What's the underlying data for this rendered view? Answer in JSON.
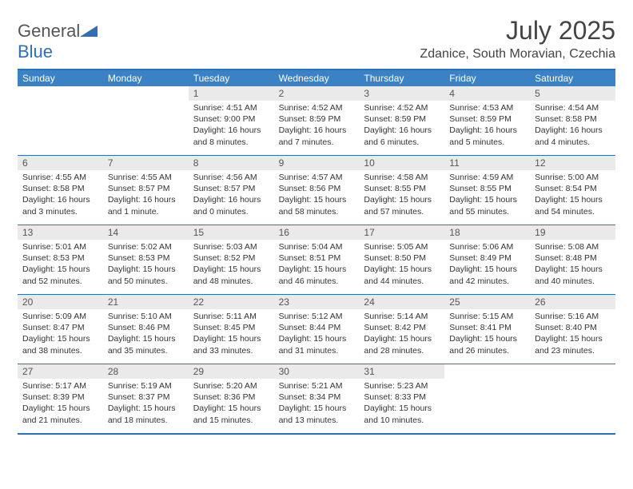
{
  "brand": {
    "name_prefix": "General",
    "name_suffix": "Blue"
  },
  "title": "July 2025",
  "location": "Zdanice, South Moravian, Czechia",
  "colors": {
    "header_bg": "#3b82c4",
    "border": "#2d6fb8",
    "daynum_bg": "#eaeaea",
    "text": "#333333"
  },
  "day_names": [
    "Sunday",
    "Monday",
    "Tuesday",
    "Wednesday",
    "Thursday",
    "Friday",
    "Saturday"
  ],
  "weeks": [
    [
      null,
      null,
      {
        "n": "1",
        "sr": "4:51 AM",
        "ss": "9:00 PM",
        "dl": "16 hours and 8 minutes."
      },
      {
        "n": "2",
        "sr": "4:52 AM",
        "ss": "8:59 PM",
        "dl": "16 hours and 7 minutes."
      },
      {
        "n": "3",
        "sr": "4:52 AM",
        "ss": "8:59 PM",
        "dl": "16 hours and 6 minutes."
      },
      {
        "n": "4",
        "sr": "4:53 AM",
        "ss": "8:59 PM",
        "dl": "16 hours and 5 minutes."
      },
      {
        "n": "5",
        "sr": "4:54 AM",
        "ss": "8:58 PM",
        "dl": "16 hours and 4 minutes."
      }
    ],
    [
      {
        "n": "6",
        "sr": "4:55 AM",
        "ss": "8:58 PM",
        "dl": "16 hours and 3 minutes."
      },
      {
        "n": "7",
        "sr": "4:55 AM",
        "ss": "8:57 PM",
        "dl": "16 hours and 1 minute."
      },
      {
        "n": "8",
        "sr": "4:56 AM",
        "ss": "8:57 PM",
        "dl": "16 hours and 0 minutes."
      },
      {
        "n": "9",
        "sr": "4:57 AM",
        "ss": "8:56 PM",
        "dl": "15 hours and 58 minutes."
      },
      {
        "n": "10",
        "sr": "4:58 AM",
        "ss": "8:55 PM",
        "dl": "15 hours and 57 minutes."
      },
      {
        "n": "11",
        "sr": "4:59 AM",
        "ss": "8:55 PM",
        "dl": "15 hours and 55 minutes."
      },
      {
        "n": "12",
        "sr": "5:00 AM",
        "ss": "8:54 PM",
        "dl": "15 hours and 54 minutes."
      }
    ],
    [
      {
        "n": "13",
        "sr": "5:01 AM",
        "ss": "8:53 PM",
        "dl": "15 hours and 52 minutes."
      },
      {
        "n": "14",
        "sr": "5:02 AM",
        "ss": "8:53 PM",
        "dl": "15 hours and 50 minutes."
      },
      {
        "n": "15",
        "sr": "5:03 AM",
        "ss": "8:52 PM",
        "dl": "15 hours and 48 minutes."
      },
      {
        "n": "16",
        "sr": "5:04 AM",
        "ss": "8:51 PM",
        "dl": "15 hours and 46 minutes."
      },
      {
        "n": "17",
        "sr": "5:05 AM",
        "ss": "8:50 PM",
        "dl": "15 hours and 44 minutes."
      },
      {
        "n": "18",
        "sr": "5:06 AM",
        "ss": "8:49 PM",
        "dl": "15 hours and 42 minutes."
      },
      {
        "n": "19",
        "sr": "5:08 AM",
        "ss": "8:48 PM",
        "dl": "15 hours and 40 minutes."
      }
    ],
    [
      {
        "n": "20",
        "sr": "5:09 AM",
        "ss": "8:47 PM",
        "dl": "15 hours and 38 minutes."
      },
      {
        "n": "21",
        "sr": "5:10 AM",
        "ss": "8:46 PM",
        "dl": "15 hours and 35 minutes."
      },
      {
        "n": "22",
        "sr": "5:11 AM",
        "ss": "8:45 PM",
        "dl": "15 hours and 33 minutes."
      },
      {
        "n": "23",
        "sr": "5:12 AM",
        "ss": "8:44 PM",
        "dl": "15 hours and 31 minutes."
      },
      {
        "n": "24",
        "sr": "5:14 AM",
        "ss": "8:42 PM",
        "dl": "15 hours and 28 minutes."
      },
      {
        "n": "25",
        "sr": "5:15 AM",
        "ss": "8:41 PM",
        "dl": "15 hours and 26 minutes."
      },
      {
        "n": "26",
        "sr": "5:16 AM",
        "ss": "8:40 PM",
        "dl": "15 hours and 23 minutes."
      }
    ],
    [
      {
        "n": "27",
        "sr": "5:17 AM",
        "ss": "8:39 PM",
        "dl": "15 hours and 21 minutes."
      },
      {
        "n": "28",
        "sr": "5:19 AM",
        "ss": "8:37 PM",
        "dl": "15 hours and 18 minutes."
      },
      {
        "n": "29",
        "sr": "5:20 AM",
        "ss": "8:36 PM",
        "dl": "15 hours and 15 minutes."
      },
      {
        "n": "30",
        "sr": "5:21 AM",
        "ss": "8:34 PM",
        "dl": "15 hours and 13 minutes."
      },
      {
        "n": "31",
        "sr": "5:23 AM",
        "ss": "8:33 PM",
        "dl": "15 hours and 10 minutes."
      },
      null,
      null
    ]
  ],
  "labels": {
    "sunrise": "Sunrise:",
    "sunset": "Sunset:",
    "daylight": "Daylight:"
  }
}
